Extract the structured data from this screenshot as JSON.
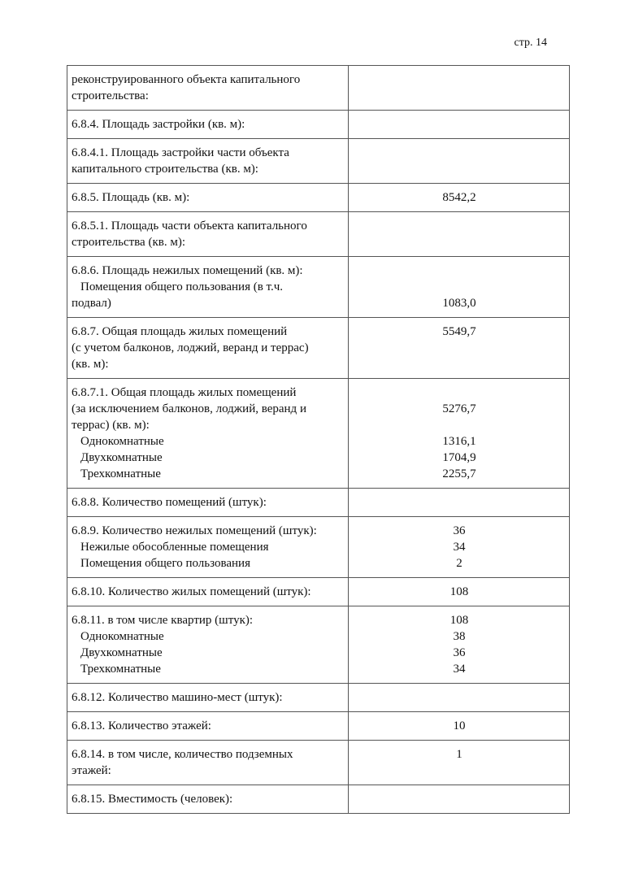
{
  "page_number": "стр. 14",
  "rows": [
    {
      "left": [
        "реконструированного объекта капитального",
        "строительства:"
      ],
      "right": []
    },
    {
      "left": [
        "6.8.4. Площадь застройки (кв. м):"
      ],
      "right": []
    },
    {
      "left": [
        "6.8.4.1. Площадь застройки части объекта",
        "капитального строительства (кв. м):"
      ],
      "right": []
    },
    {
      "left": [
        "6.8.5. Площадь (кв. м):"
      ],
      "right": [
        "8542,2"
      ]
    },
    {
      "left": [
        "6.8.5.1. Площадь части объекта капитального",
        "строительства (кв. м):"
      ],
      "right": []
    },
    {
      "left": [
        "6.8.6. Площадь нежилых помещений (кв. м):",
        "  Помещения общего пользования (в т.ч.",
        "подвал)"
      ],
      "right": [
        "",
        "",
        "1083,0"
      ]
    },
    {
      "left": [
        "6.8.7. Общая площадь жилых помещений",
        "(с учетом балконов, лоджий, веранд и террас)",
        " (кв. м):"
      ],
      "right": [
        "5549,7"
      ]
    },
    {
      "left": [
        "6.8.7.1. Общая площадь жилых помещений",
        "(за исключением балконов, лоджий, веранд и",
        "террас) (кв. м):",
        "  Однокомнатные",
        "  Двухкомнатные",
        "  Трехкомнатные"
      ],
      "right": [
        "",
        "5276,7",
        "",
        "1316,1",
        "1704,9",
        "2255,7"
      ]
    },
    {
      "left": [
        "6.8.8. Количество помещений (штук):"
      ],
      "right": []
    },
    {
      "left": [
        "6.8.9. Количество нежилых помещений (штук):",
        "  Нежилые обособленные помещения",
        "  Помещения общего пользования"
      ],
      "right": [
        "36",
        "34",
        "2"
      ]
    },
    {
      "left": [
        "6.8.10. Количество жилых помещений (штук):"
      ],
      "right": [
        "108"
      ]
    },
    {
      "left": [
        "6.8.11. в том числе квартир (штук):",
        "  Однокомнатные",
        "  Двухкомнатные",
        "  Трехкомнатные"
      ],
      "right": [
        "108",
        "38",
        "36",
        "34"
      ]
    },
    {
      "left": [
        "6.8.12. Количество машино-мест (штук):"
      ],
      "right": []
    },
    {
      "left": [
        "6.8.13. Количество этажей:"
      ],
      "right": [
        "10"
      ]
    },
    {
      "left": [
        "6.8.14. в том числе, количество подземных",
        "этажей:"
      ],
      "right": [
        "1"
      ]
    },
    {
      "left": [
        "6.8.15. Вместимость (человек):"
      ],
      "right": []
    }
  ]
}
